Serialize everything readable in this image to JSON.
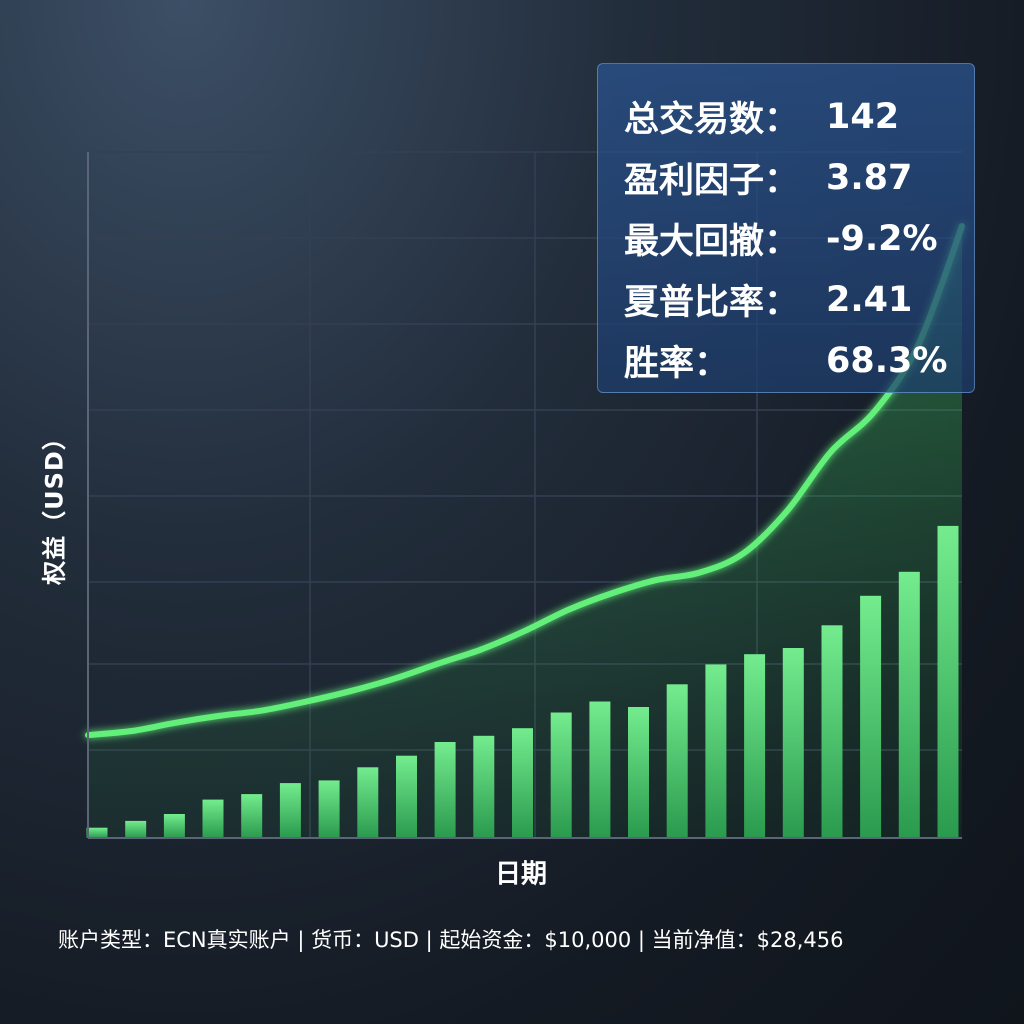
{
  "stats": [
    {
      "label": "总交易数：",
      "value": "142"
    },
    {
      "label": "盈利因子：",
      "value": "3.87"
    },
    {
      "label": "最大回撤：",
      "value": "-9.2%"
    },
    {
      "label": "夏普比率：",
      "value": "2.41"
    },
    {
      "label": "胜率：",
      "value": "68.3%"
    }
  ],
  "footer": "账户类型：ECN真实账户 | 货币：USD | 起始资金：$10,000 | 当前净值：$28,456",
  "colors": {
    "line": "#62f07a",
    "bar_top": "#6ee487",
    "bar_bottom": "#2a9a4e",
    "area": "#3ec45e",
    "grid": "#3a4656",
    "panel": "#2a528c"
  },
  "chart_data": {
    "type": "bar+line",
    "xlabel": "日期",
    "ylabel": "权益（USD）",
    "ylim": [
      0,
      100
    ],
    "grid": true,
    "series": [
      {
        "kind": "bar",
        "values": [
          1.5,
          2.5,
          3.5,
          5.6,
          6.4,
          8.0,
          8.4,
          10.3,
          12.0,
          14.0,
          14.9,
          16.0,
          18.3,
          19.9,
          19.1,
          22.4,
          25.3,
          26.8,
          27.7,
          31.0,
          35.3,
          38.8,
          45.5
        ]
      },
      {
        "kind": "line",
        "x": [
          0,
          5,
          10,
          15,
          20,
          25,
          30,
          35,
          40,
          45,
          50,
          55,
          60,
          65,
          70,
          75,
          80,
          85,
          90,
          95,
          100
        ],
        "y": [
          15.0,
          15.6,
          16.8,
          17.8,
          18.6,
          19.9,
          21.4,
          23.2,
          25.4,
          27.5,
          30.2,
          33.3,
          35.7,
          37.6,
          38.7,
          41.5,
          47.7,
          56.3,
          62.2,
          71.9,
          89.2
        ]
      }
    ]
  }
}
